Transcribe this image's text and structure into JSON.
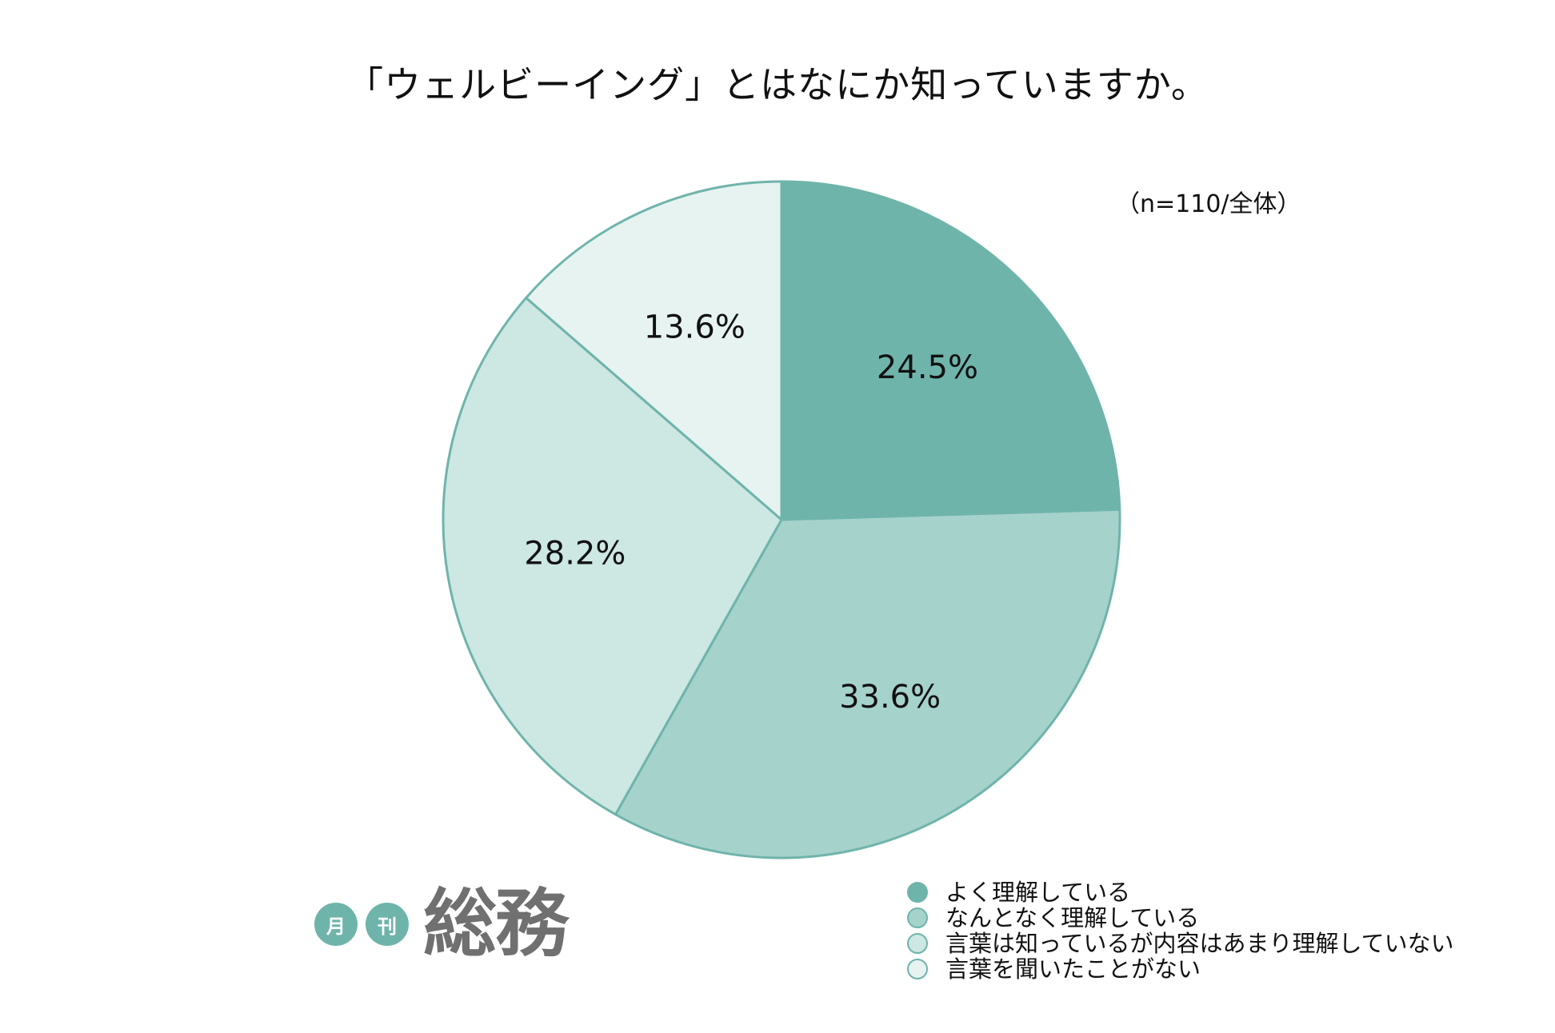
{
  "chart_data": {
    "type": "pie",
    "title": "「ウェルビーイング」とはなにか知っていますか。",
    "note": "（n=110/全体）",
    "categories": [
      "よく理解している",
      "なんとなく理解している",
      "言葉は知っているが内容はあまり理解していない",
      "言葉を聞いたことがない"
    ],
    "values": [
      24.5,
      33.6,
      28.2,
      13.6
    ],
    "value_labels": [
      "24.5%",
      "33.6%",
      "28.2%",
      "13.6%"
    ],
    "colors": [
      "#6fb4ab",
      "#a6d2cc",
      "#cde7e3",
      "#e6f3f1"
    ],
    "stroke_color": "#6fb4ab",
    "start_angle": "12 o'clock",
    "direction": "clockwise",
    "legend_position": "bottom-right"
  },
  "logo": {
    "badge1": "月",
    "badge2": "刊",
    "main": "総務",
    "badge_color": "#6fb4ab"
  }
}
